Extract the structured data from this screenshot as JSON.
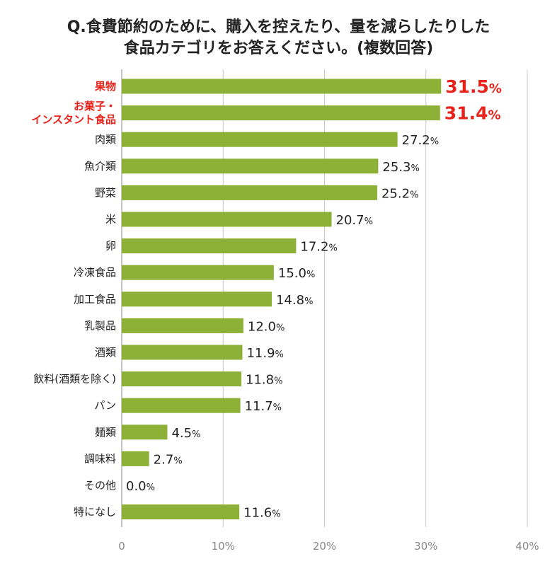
{
  "chart_data": {
    "type": "bar",
    "orientation": "horizontal",
    "title_lines": [
      "Q.食費節約のために、購入を控えたり、量を減らしたりした",
      "食品カテゴリをお答えください。(複数回答)"
    ],
    "categories": [
      "果物",
      "お菓子・\nインスタント食品",
      "肉類",
      "魚介類",
      "野菜",
      "米",
      "卵",
      "冷凍食品",
      "加工食品",
      "乳製品",
      "酒類",
      "飲料(酒類を除く)",
      "パン",
      "麺類",
      "調味料",
      "その他",
      "特になし"
    ],
    "values": [
      31.5,
      31.4,
      27.2,
      25.3,
      25.2,
      20.7,
      17.2,
      15.0,
      14.8,
      12.0,
      11.9,
      11.8,
      11.7,
      4.5,
      2.7,
      0.0,
      11.6
    ],
    "value_labels": [
      "31.5",
      "31.4",
      "27.2",
      "25.3",
      "25.2",
      "20.7",
      "17.2",
      "15.0",
      "14.8",
      "12.0",
      "11.9",
      "11.8",
      "11.7",
      "4.5",
      "2.7",
      "0.0",
      "11.6"
    ],
    "unit": "%",
    "highlighted": [
      0,
      1
    ],
    "xlim": [
      0,
      40
    ],
    "xticks": [
      "0",
      "10%",
      "20%",
      "30%",
      "40%"
    ],
    "grid": true,
    "colors": {
      "bar": "#8cb136",
      "highlight": "#e8231b",
      "text": "#222222",
      "grid": "#c8c8c8"
    }
  }
}
